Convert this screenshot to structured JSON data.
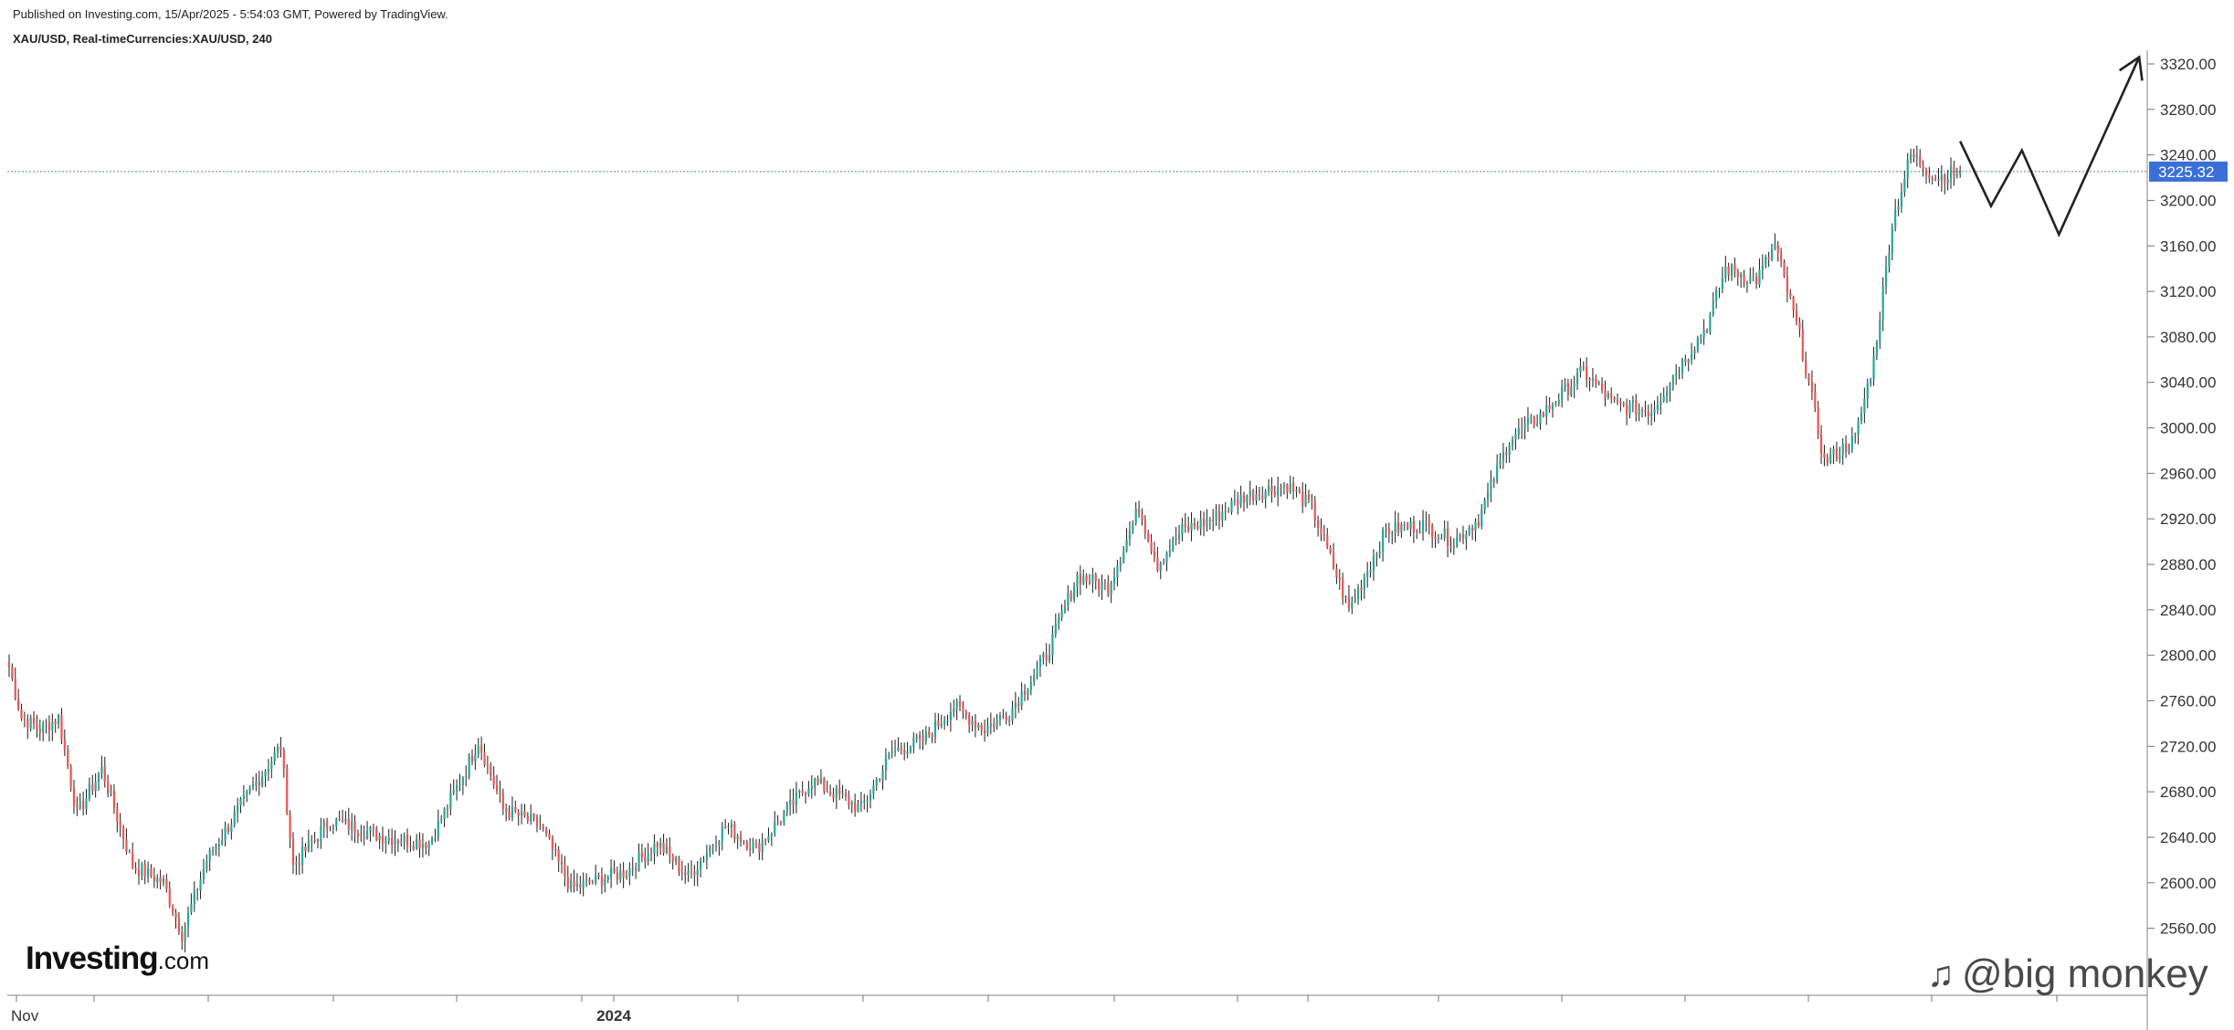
{
  "header": {
    "published": "Published on Investing.com, 15/Apr/2025 - 5:54:03 GMT, Powered by TradingView.",
    "symbol": "XAU/USD, Real-timeCurrencies:XAU/USD, 240"
  },
  "logo": {
    "brand": "Investing",
    "suffix": ".com"
  },
  "watermark": {
    "icon": "tiktok-style-icon",
    "text": "@big monkey"
  },
  "colors": {
    "up": "#26a69a",
    "down": "#ef5350",
    "wick": "#1c1c1c",
    "badge": "#3b6fd8",
    "drawing": "#222222",
    "priceline": "#4a8f87"
  },
  "chart_data": {
    "type": "candlestick",
    "instrument": "XAU/USD",
    "timeframe": "240",
    "ylim": [
      2520,
      3340
    ],
    "y_ticks": [
      "3320.00",
      "3280.00",
      "3240.00",
      "3200.00",
      "3160.00",
      "3120.00",
      "3080.00",
      "3040.00",
      "3000.00",
      "2960.00",
      "2920.00",
      "2880.00",
      "2840.00",
      "2800.00",
      "2760.00",
      "2720.00",
      "2680.00",
      "2640.00",
      "2600.00",
      "2560.00"
    ],
    "x_labels": [
      {
        "label": "Nov",
        "bold": false,
        "pos": 0.0
      },
      {
        "label": "2024",
        "bold": true,
        "pos": 0.2865
      }
    ],
    "current_price": "3225.32",
    "price_path": [
      [
        0,
        2790
      ],
      [
        4,
        2745
      ],
      [
        10,
        2735
      ],
      [
        16,
        2745
      ],
      [
        22,
        2660
      ],
      [
        30,
        2700
      ],
      [
        40,
        2615
      ],
      [
        50,
        2600
      ],
      [
        56,
        2555
      ],
      [
        64,
        2620
      ],
      [
        78,
        2680
      ],
      [
        88,
        2720
      ],
      [
        92,
        2615
      ],
      [
        104,
        2655
      ],
      [
        122,
        2640
      ],
      [
        136,
        2635
      ],
      [
        148,
        2700
      ],
      [
        152,
        2725
      ],
      [
        160,
        2665
      ],
      [
        172,
        2650
      ],
      [
        182,
        2595
      ],
      [
        200,
        2610
      ],
      [
        210,
        2635
      ],
      [
        220,
        2605
      ],
      [
        232,
        2650
      ],
      [
        242,
        2630
      ],
      [
        260,
        2690
      ],
      [
        276,
        2665
      ],
      [
        286,
        2715
      ],
      [
        296,
        2725
      ],
      [
        306,
        2755
      ],
      [
        316,
        2735
      ],
      [
        324,
        2750
      ],
      [
        336,
        2800
      ],
      [
        346,
        2870
      ],
      [
        356,
        2860
      ],
      [
        366,
        2930
      ],
      [
        372,
        2880
      ],
      [
        380,
        2910
      ],
      [
        390,
        2920
      ],
      [
        400,
        2940
      ],
      [
        414,
        2950
      ],
      [
        422,
        2930
      ],
      [
        430,
        2870
      ],
      [
        434,
        2840
      ],
      [
        446,
        2910
      ],
      [
        458,
        2915
      ],
      [
        468,
        2900
      ],
      [
        476,
        2920
      ],
      [
        486,
        2990
      ],
      [
        496,
        3010
      ],
      [
        510,
        3050
      ],
      [
        520,
        3020
      ],
      [
        532,
        3015
      ],
      [
        540,
        3050
      ],
      [
        550,
        3090
      ],
      [
        556,
        3140
      ],
      [
        566,
        3130
      ],
      [
        572,
        3160
      ],
      [
        580,
        3080
      ],
      [
        588,
        2970
      ],
      [
        598,
        2990
      ],
      [
        604,
        3060
      ],
      [
        610,
        3180
      ],
      [
        616,
        3240
      ],
      [
        624,
        3220
      ],
      [
        632,
        3225
      ]
    ],
    "projection": [
      [
        632,
        3252
      ],
      [
        642,
        3195
      ],
      [
        652,
        3244
      ],
      [
        664,
        3170
      ],
      [
        690,
        3326
      ]
    ]
  }
}
